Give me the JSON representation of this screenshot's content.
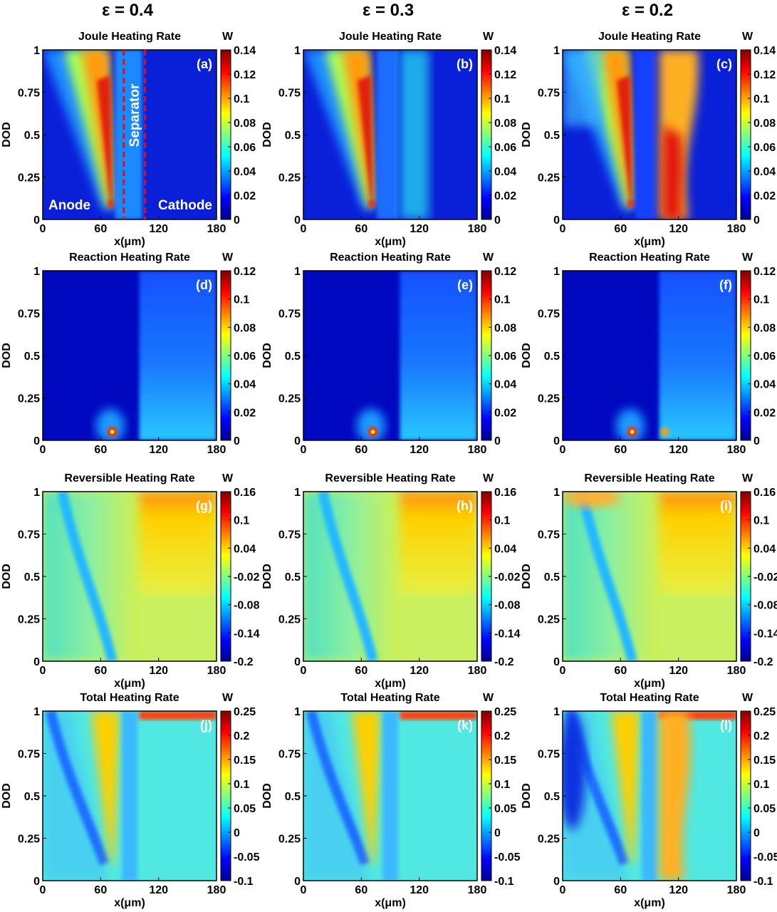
{
  "columns": [
    "ε = 0.4",
    "ε = 0.3",
    "ε = 0.2"
  ],
  "unit": "W",
  "xlabel": "x(μm)",
  "ylabel": "DOD",
  "x_ticks": [
    "0",
    "60",
    "120",
    "180"
  ],
  "y_ticks": [
    "0",
    "0.25",
    "0.5",
    "0.75",
    "1"
  ],
  "annotations": {
    "anode": "Anode",
    "cathode": "Cathode",
    "separator": "Separator"
  },
  "colormap": [
    "#00008f",
    "#0000ff",
    "#0080ff",
    "#00ffff",
    "#80ff80",
    "#ffff00",
    "#ff8000",
    "#ff0000",
    "#800000"
  ],
  "rows": [
    {
      "title": "Joule Heating Rate",
      "cbar_ticks": [
        "0",
        "0.02",
        "0.04",
        "0.06",
        "0.08",
        "0.1",
        "0.12",
        "0.14"
      ]
    },
    {
      "title": "Reaction Heating Rate",
      "cbar_ticks": [
        "0",
        "0.02",
        "0.04",
        "0.06",
        "0.08",
        "0.1",
        "0.12"
      ]
    },
    {
      "title": "Reversible Heating Rate",
      "cbar_ticks": [
        "-0.2",
        "-0.14",
        "-0.08",
        "-0.02",
        "0.04",
        "0.1",
        "0.16"
      ]
    },
    {
      "title": "Total Heating Rate",
      "cbar_ticks": [
        "-0.1",
        "-0.05",
        "0",
        "0.05",
        "0.1",
        "0.15",
        "0.2",
        "0.25"
      ]
    }
  ],
  "chart_data": [
    {
      "type": "heatmap",
      "panel": "(a)",
      "title": "Joule Heating Rate",
      "column": "ε = 0.4",
      "xlabel": "x(μm)",
      "ylabel": "DOD",
      "xlim": [
        0,
        180
      ],
      "ylim": [
        0,
        1
      ],
      "clim": [
        0,
        0.14
      ],
      "colorbar_unit": "W"
    },
    {
      "type": "heatmap",
      "panel": "(b)",
      "title": "Joule Heating Rate",
      "column": "ε = 0.3",
      "xlabel": "x(μm)",
      "ylabel": "DOD",
      "xlim": [
        0,
        180
      ],
      "ylim": [
        0,
        1
      ],
      "clim": [
        0,
        0.14
      ],
      "colorbar_unit": "W"
    },
    {
      "type": "heatmap",
      "panel": "(c)",
      "title": "Joule Heating Rate",
      "column": "ε = 0.2",
      "xlabel": "x(μm)",
      "ylabel": "DOD",
      "xlim": [
        0,
        180
      ],
      "ylim": [
        0,
        1
      ],
      "clim": [
        0,
        0.14
      ],
      "colorbar_unit": "W"
    },
    {
      "type": "heatmap",
      "panel": "(d)",
      "title": "Reaction Heating Rate",
      "column": "ε = 0.4",
      "xlabel": "",
      "ylabel": "DOD",
      "xlim": [
        0,
        180
      ],
      "ylim": [
        0,
        1
      ],
      "clim": [
        0,
        0.12
      ],
      "colorbar_unit": "W"
    },
    {
      "type": "heatmap",
      "panel": "(e)",
      "title": "Reaction Heating Rate",
      "column": "ε = 0.3",
      "xlabel": "",
      "ylabel": "DOD",
      "xlim": [
        0,
        180
      ],
      "ylim": [
        0,
        1
      ],
      "clim": [
        0,
        0.12
      ],
      "colorbar_unit": "W"
    },
    {
      "type": "heatmap",
      "panel": "(f)",
      "title": "Reaction Heating Rate",
      "column": "ε = 0.2",
      "xlabel": "",
      "ylabel": "DOD",
      "xlim": [
        0,
        180
      ],
      "ylim": [
        0,
        1
      ],
      "clim": [
        0,
        0.12
      ],
      "colorbar_unit": "W"
    },
    {
      "type": "heatmap",
      "panel": "(g)",
      "title": "Reversible Heating Rate",
      "column": "ε = 0.4",
      "xlabel": "x(μm)",
      "ylabel": "DOD",
      "xlim": [
        0,
        180
      ],
      "ylim": [
        0,
        1
      ],
      "clim": [
        -0.2,
        0.16
      ],
      "colorbar_unit": "W"
    },
    {
      "type": "heatmap",
      "panel": "(h)",
      "title": "Reversible Heating Rate",
      "column": "ε = 0.3",
      "xlabel": "x(μm)",
      "ylabel": "DOD",
      "xlim": [
        0,
        180
      ],
      "ylim": [
        0,
        1
      ],
      "clim": [
        -0.2,
        0.16
      ],
      "colorbar_unit": "W"
    },
    {
      "type": "heatmap",
      "panel": "(i)",
      "title": "Reversible Heating Rate",
      "column": "ε = 0.2",
      "xlabel": "x(μm)",
      "ylabel": "DOD",
      "xlim": [
        0,
        180
      ],
      "ylim": [
        0,
        1
      ],
      "clim": [
        -0.2,
        0.16
      ],
      "colorbar_unit": "W"
    },
    {
      "type": "heatmap",
      "panel": "(j)",
      "title": "Total Heating Rate",
      "column": "ε = 0.4",
      "xlabel": "x(μm)",
      "ylabel": "DOD",
      "xlim": [
        0,
        180
      ],
      "ylim": [
        0,
        1
      ],
      "clim": [
        -0.1,
        0.25
      ],
      "colorbar_unit": "W"
    },
    {
      "type": "heatmap",
      "panel": "(k)",
      "title": "Total Heating Rate",
      "column": "ε = 0.3",
      "xlabel": "x(μm)",
      "ylabel": "DOD",
      "xlim": [
        0,
        180
      ],
      "ylim": [
        0,
        1
      ],
      "clim": [
        -0.1,
        0.25
      ],
      "colorbar_unit": "W"
    },
    {
      "type": "heatmap",
      "panel": "(l)",
      "title": "Total Heating Rate",
      "column": "ε = 0.2",
      "xlabel": "x(μm)",
      "ylabel": "DOD",
      "xlim": [
        0,
        180
      ],
      "ylim": [
        0,
        1
      ],
      "clim": [
        -0.1,
        0.25
      ],
      "colorbar_unit": "W"
    }
  ]
}
